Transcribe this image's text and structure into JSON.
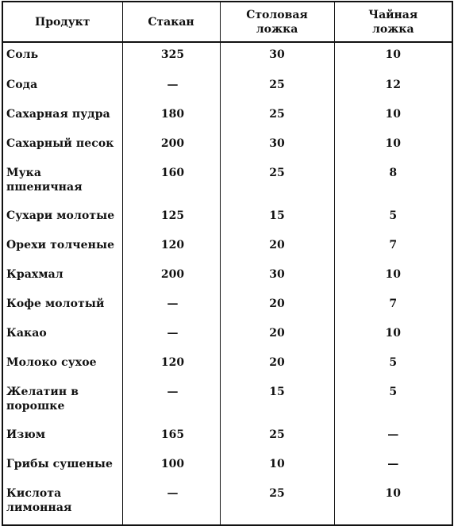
{
  "table": {
    "headers": {
      "product": "Продукт",
      "glass": "Стакан",
      "tablespace_line1": "Столовая",
      "tablespace_line2": "ложка",
      "teaspoon_line1": "Чайная",
      "teaspoon_line2": "ложка"
    },
    "rows": [
      {
        "product": "Соль",
        "glass": "325",
        "tablespoon": "30",
        "teaspoon": "10"
      },
      {
        "product": "Сода",
        "glass": "—",
        "tablespoon": "25",
        "teaspoon": "12"
      },
      {
        "product": "Сахарная пудра",
        "glass": "180",
        "tablespoon": "25",
        "teaspoon": "10"
      },
      {
        "product": "Сахарный песок",
        "glass": "200",
        "tablespoon": "30",
        "teaspoon": "10"
      },
      {
        "product_line1": "Мука",
        "product_line2": "пшеничная",
        "glass": "160",
        "tablespoon": "25",
        "teaspoon": "8"
      },
      {
        "product": "Сухари молотые",
        "glass": "125",
        "tablespoon": "15",
        "teaspoon": "5"
      },
      {
        "product": "Орехи толченые",
        "glass": "120",
        "tablespoon": "20",
        "teaspoon": "7"
      },
      {
        "product": "Крахмал",
        "glass": "200",
        "tablespoon": "30",
        "teaspoon": "10"
      },
      {
        "product": "Кофе молотый",
        "glass": "—",
        "tablespoon": "20",
        "teaspoon": "7"
      },
      {
        "product": "Какао",
        "glass": "—",
        "tablespoon": "20",
        "teaspoon": "10"
      },
      {
        "product": "Молоко сухое",
        "glass": "120",
        "tablespoon": "20",
        "teaspoon": "5"
      },
      {
        "product_line1": "Желатин в",
        "product_line2": "порошке",
        "glass": "—",
        "tablespoon": "15",
        "teaspoon": "5"
      },
      {
        "product": "Изюм",
        "glass": "165",
        "tablespoon": "25",
        "teaspoon": "—"
      },
      {
        "product": "Грибы сушеные",
        "glass": "100",
        "tablespoon": "10",
        "teaspoon": "—"
      },
      {
        "product_line1": "Кислота",
        "product_line2": "лимонная",
        "glass": "—",
        "tablespoon": "25",
        "teaspoon": "10"
      }
    ]
  }
}
